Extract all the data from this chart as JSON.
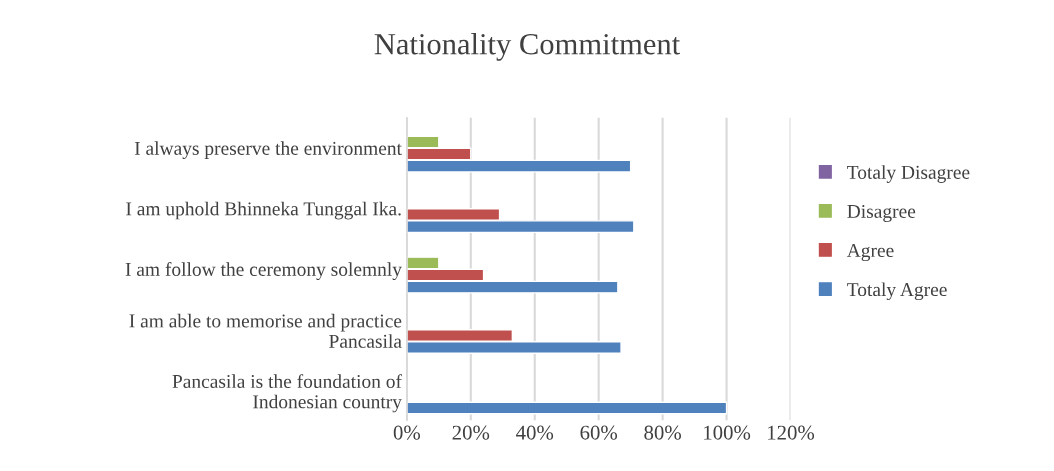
{
  "chart_data": {
    "type": "bar",
    "orientation": "horizontal",
    "title": "Nationality Commitment",
    "categories": [
      "I always preserve the environment",
      "I am uphold Bhinneka Tunggal Ika.",
      "I am follow the ceremony solemnly",
      "I am able to memorise and practice\nPancasila",
      "Pancasila is the foundation of\nIndonesian country"
    ],
    "series": [
      {
        "name": "Totaly Agree",
        "color": "#4f81bd",
        "values": [
          70,
          71,
          66,
          67,
          100
        ]
      },
      {
        "name": "Agree",
        "color": "#c0504d",
        "values": [
          20,
          29,
          24,
          33,
          null
        ]
      },
      {
        "name": "Disagree",
        "color": "#9bbb59",
        "values": [
          10,
          null,
          10,
          null,
          null
        ]
      },
      {
        "name": "Totaly Disagree",
        "color": "#8064a2",
        "values": [
          null,
          null,
          null,
          null,
          null
        ]
      }
    ],
    "xlim": [
      0,
      120
    ],
    "xticks": [
      {
        "value": 0,
        "label": "0%"
      },
      {
        "value": 20,
        "label": "20%"
      },
      {
        "value": 40,
        "label": "40%"
      },
      {
        "value": 60,
        "label": "60%"
      },
      {
        "value": 80,
        "label": "80%"
      },
      {
        "value": 100,
        "label": "100%"
      },
      {
        "value": 120,
        "label": "120%"
      }
    ],
    "grid": "x",
    "legend": "right"
  }
}
